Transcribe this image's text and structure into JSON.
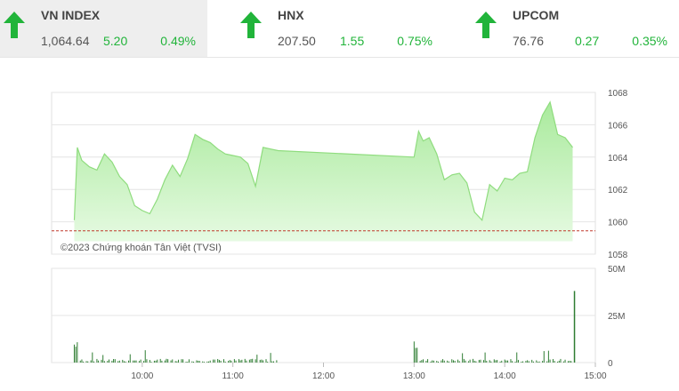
{
  "tickers": [
    {
      "name": "VN INDEX",
      "last": "1,064.64",
      "change": "5.20",
      "percent": "0.49%",
      "direction": "up"
    },
    {
      "name": "HNX",
      "last": "207.50",
      "change": "1.55",
      "percent": "0.75%",
      "direction": "up"
    },
    {
      "name": "UPCOM",
      "last": "76.76",
      "change": "0.27",
      "percent": "0.35%",
      "direction": "up"
    }
  ],
  "colors": {
    "up": "#21b43a",
    "area_fill_top": "#a9ea9c",
    "area_fill_bottom": "#e6fae2",
    "area_line": "#8fdc7e",
    "reference_line": "#c0392b",
    "volume_bar": "#2e7d32"
  },
  "chart": {
    "copyright": "©2023 Chứng khoán Tân Việt (TVSI)",
    "price_ticks": [
      "1068",
      "1066",
      "1064",
      "1062",
      "1060",
      "1058"
    ],
    "volume_ticks": [
      "50M",
      "25M",
      "0"
    ],
    "time_ticks": [
      "10:00",
      "11:00",
      "12:00",
      "13:00",
      "14:00",
      "15:00"
    ]
  },
  "chart_data": {
    "type": "area",
    "title": "",
    "xlabel": "",
    "ylabel": "",
    "ylim": [
      1058,
      1068
    ],
    "reference": 1059.44,
    "series": [
      {
        "x": [
          "09:15",
          "09:17",
          "09:20",
          "09:25",
          "09:30",
          "09:35",
          "09:40",
          "09:45",
          "09:50",
          "09:55",
          "10:00",
          "10:05",
          "10:10",
          "10:15",
          "10:20",
          "10:25",
          "10:30",
          "10:35",
          "10:40",
          "10:45",
          "10:50",
          "10:55",
          "11:00",
          "11:05",
          "11:10",
          "11:15",
          "11:20",
          "11:25",
          "11:30",
          "13:00",
          "13:03",
          "13:06",
          "13:10",
          "13:15",
          "13:20",
          "13:25",
          "13:30",
          "13:35",
          "13:40",
          "13:45",
          "13:50",
          "13:55",
          "14:00",
          "14:05",
          "14:10",
          "14:15",
          "14:20",
          "14:25",
          "14:30",
          "14:35",
          "14:40",
          "14:45"
        ],
        "values": [
          1060.1,
          1064.6,
          1063.8,
          1063.4,
          1063.2,
          1064.2,
          1063.7,
          1062.8,
          1062.3,
          1061.0,
          1060.7,
          1060.5,
          1061.4,
          1062.6,
          1063.5,
          1062.8,
          1063.9,
          1065.4,
          1065.1,
          1064.9,
          1064.5,
          1064.2,
          1064.1,
          1064.0,
          1063.6,
          1062.2,
          1064.6,
          1064.5,
          1064.4,
          1064.0,
          1065.6,
          1065.0,
          1065.2,
          1064.2,
          1062.6,
          1062.9,
          1063.0,
          1062.4,
          1060.6,
          1060.1,
          1062.3,
          1061.9,
          1062.7,
          1062.6,
          1063.0,
          1063.1,
          1065.2,
          1066.6,
          1067.4,
          1065.4,
          1065.2,
          1064.6
        ]
      }
    ],
    "volume": {
      "unit": "M",
      "ylim": [
        0,
        50
      ],
      "spike": {
        "x": "14:45",
        "value": 38
      }
    }
  }
}
